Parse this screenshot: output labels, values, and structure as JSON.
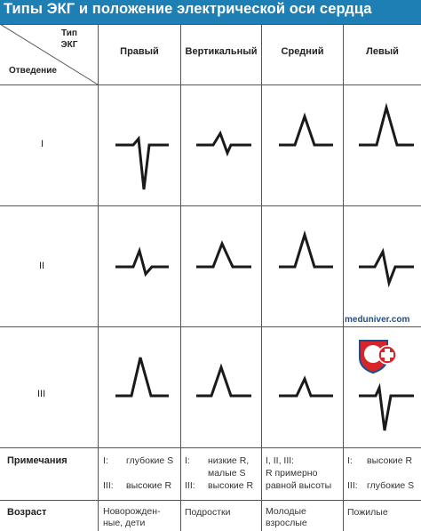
{
  "title": "Типы ЭКГ и положение электрической оси сердца",
  "header": {
    "corner_type": [
      "Тип",
      "ЭКГ"
    ],
    "corner_lead": "Отведение",
    "columns": [
      "Правый",
      "Вертикальный",
      "Средний",
      "Левый"
    ]
  },
  "leads": [
    "I",
    "II",
    "III"
  ],
  "rows": {
    "notes_label": "Примечания",
    "age_label": "Возраст"
  },
  "notes": [
    [
      {
        "k": "I:",
        "v": "глубокие S"
      },
      {
        "k": "III:",
        "v": "высокие R"
      }
    ],
    [
      {
        "k": "I:",
        "v": "низкие R,"
      },
      {
        "k": "",
        "v": "малые S"
      },
      {
        "k": "III:",
        "v": "высокие R"
      }
    ],
    [
      {
        "k": "",
        "v": "I, II, III:"
      },
      {
        "k": "",
        "v": "R примерно"
      },
      {
        "k": "",
        "v": "равной высоты"
      }
    ],
    [
      {
        "k": "I:",
        "v": "высокие R"
      },
      {
        "k": "III:",
        "v": "глубокие S"
      }
    ]
  ],
  "age": [
    "Новорожден-\nные, дети",
    "Подростки",
    "Молодые\nвзрослые",
    "Пожилые"
  ],
  "watermark": "meduniver.com",
  "colors": {
    "title_bg": "#1e7fb4",
    "logo_red": "#d7262b",
    "logo_blue": "#1b4f8e",
    "line": "#222222"
  }
}
